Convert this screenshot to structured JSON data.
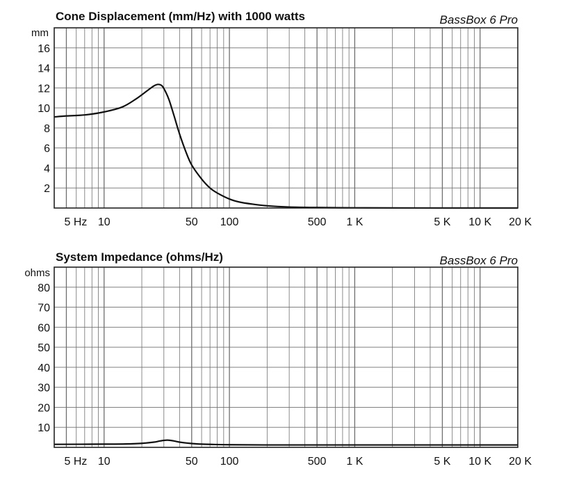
{
  "chart_data": [
    {
      "type": "line",
      "title": "Cone Displacement (mm/Hz) with 1000 watts",
      "brand": "BassBox 6 Pro",
      "ylabel": "mm",
      "xlabel": "",
      "xscale": "log",
      "xlim": [
        4,
        20000
      ],
      "ylim": [
        0,
        18
      ],
      "grid": true,
      "x_tick_values": [
        5,
        10,
        50,
        100,
        500,
        1000,
        5000,
        10000,
        20000
      ],
      "x_tick_labels": [
        "5 Hz",
        "10",
        "50",
        "100",
        "500",
        "1 K",
        "5 K",
        "10 K",
        "20 K"
      ],
      "y_tick_values": [
        2,
        4,
        6,
        8,
        10,
        12,
        14,
        16
      ],
      "y_tick_labels": [
        "2",
        "4",
        "6",
        "8",
        "10",
        "12",
        "14",
        "16"
      ],
      "series": [
        {
          "name": "Cone Displacement",
          "x": [
            4,
            5,
            7,
            10,
            14,
            18,
            22,
            25,
            27,
            29,
            31,
            33,
            36,
            40,
            45,
            50,
            60,
            70,
            80,
            100,
            120,
            150,
            200,
            300,
            500,
            1000,
            2000,
            5000,
            10000,
            20000
          ],
          "y": [
            9.1,
            9.2,
            9.3,
            9.6,
            10.1,
            10.9,
            11.7,
            12.2,
            12.35,
            12.2,
            11.6,
            10.8,
            9.3,
            7.4,
            5.6,
            4.3,
            2.9,
            2.0,
            1.5,
            0.9,
            0.6,
            0.4,
            0.22,
            0.1,
            0.05,
            0.02,
            0.01,
            0.0,
            0.0,
            0.0
          ]
        }
      ]
    },
    {
      "type": "line",
      "title": "System Impedance (ohms/Hz)",
      "brand": "BassBox 6 Pro",
      "ylabel": "ohms",
      "xlabel": "",
      "xscale": "log",
      "xlim": [
        4,
        20000
      ],
      "ylim": [
        0,
        90
      ],
      "grid": true,
      "x_tick_values": [
        5,
        10,
        50,
        100,
        500,
        1000,
        5000,
        10000,
        20000
      ],
      "x_tick_labels": [
        "5 Hz",
        "10",
        "50",
        "100",
        "500",
        "1 K",
        "5 K",
        "10 K",
        "20 K"
      ],
      "y_tick_values": [
        10,
        20,
        30,
        40,
        50,
        60,
        70,
        80
      ],
      "y_tick_labels": [
        "10",
        "20",
        "30",
        "40",
        "50",
        "60",
        "70",
        "80"
      ],
      "series": [
        {
          "name": "System Impedance",
          "x": [
            4,
            10,
            15,
            20,
            25,
            28,
            32,
            36,
            40,
            50,
            60,
            80,
            100,
            200,
            500,
            1000,
            2000,
            5000,
            10000,
            20000
          ],
          "y": [
            1.5,
            1.6,
            1.7,
            2.0,
            2.6,
            3.2,
            3.6,
            3.2,
            2.6,
            1.9,
            1.6,
            1.4,
            1.3,
            1.2,
            1.2,
            1.2,
            1.2,
            1.2,
            1.2,
            1.2
          ]
        }
      ]
    }
  ],
  "colors": {
    "line": "#111111",
    "grid": "#6e6e6e",
    "frame": "#222222",
    "background": "#ffffff"
  }
}
